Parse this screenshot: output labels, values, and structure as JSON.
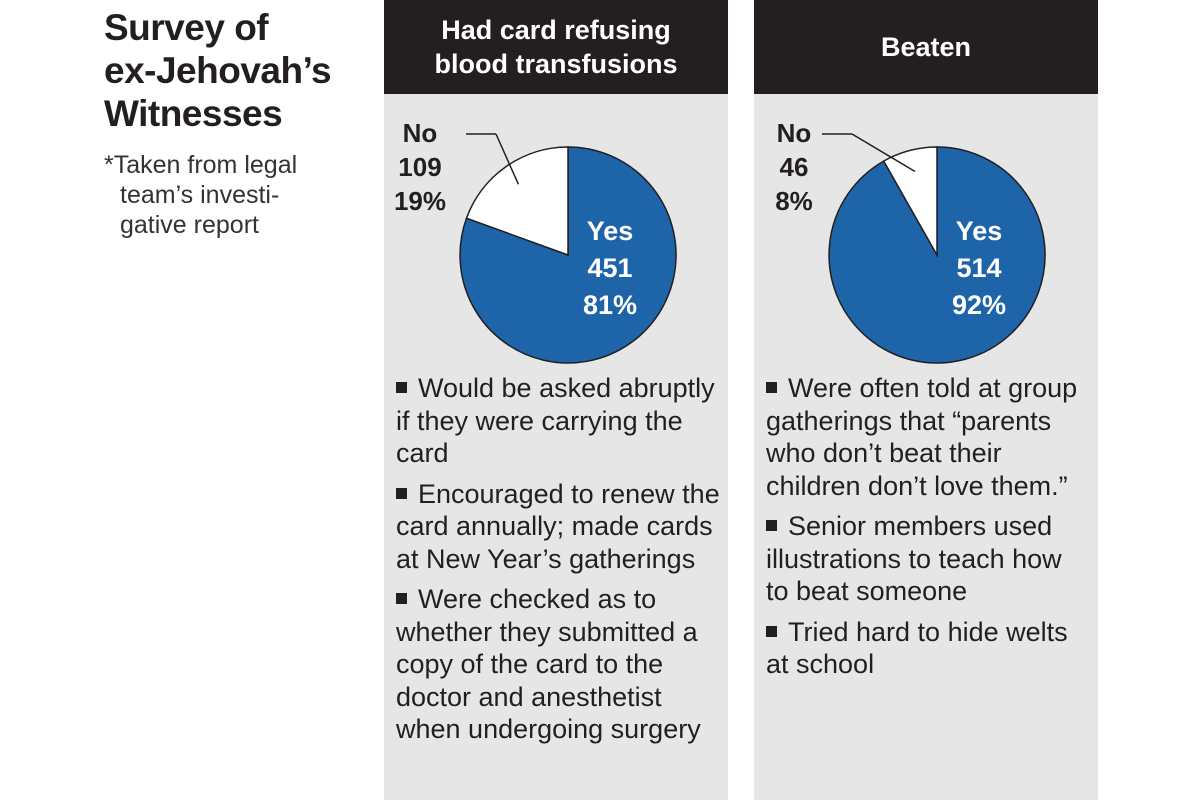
{
  "header": {
    "title_lines": [
      "Survey of",
      "ex-Jehovah’s",
      "Witnesses"
    ],
    "note_lines": [
      "*Taken from legal",
      "team’s investi-",
      "gative report"
    ]
  },
  "chart_data": [
    {
      "type": "pie",
      "title_lines": [
        "Had card refusing",
        "blood transfusions"
      ],
      "slices": [
        {
          "label": "Yes",
          "count": 451,
          "percent": 81,
          "color": "#1e64a8"
        },
        {
          "label": "No",
          "count": 109,
          "percent": 19,
          "color": "#ffffff"
        }
      ],
      "slice_texts": [
        [
          "Yes",
          "451",
          "81%"
        ],
        [
          "No",
          "109",
          "19%"
        ]
      ],
      "notes": [
        "Would be asked abruptly if they were carrying the card",
        "Encouraged to renew the card annually; made cards at New Year’s gatherings",
        "Were checked as to whether they submitted a copy of the card to the doctor and anesthetist when undergoing surgery"
      ]
    },
    {
      "type": "pie",
      "title_lines": [
        "Beaten",
        ""
      ],
      "slices": [
        {
          "label": "Yes",
          "count": 514,
          "percent": 92,
          "color": "#1e64a8"
        },
        {
          "label": "No",
          "count": 46,
          "percent": 8,
          "color": "#ffffff"
        }
      ],
      "slice_texts": [
        [
          "Yes",
          "514",
          "92%"
        ],
        [
          "No",
          "46",
          "8%"
        ]
      ],
      "notes": [
        "Were often told at group gatherings that “parents who don’t beat their children don’t love them.”",
        "Senior members used illustrations to teach how to beat someone",
        "Tried hard to hide welts at school"
      ]
    }
  ]
}
